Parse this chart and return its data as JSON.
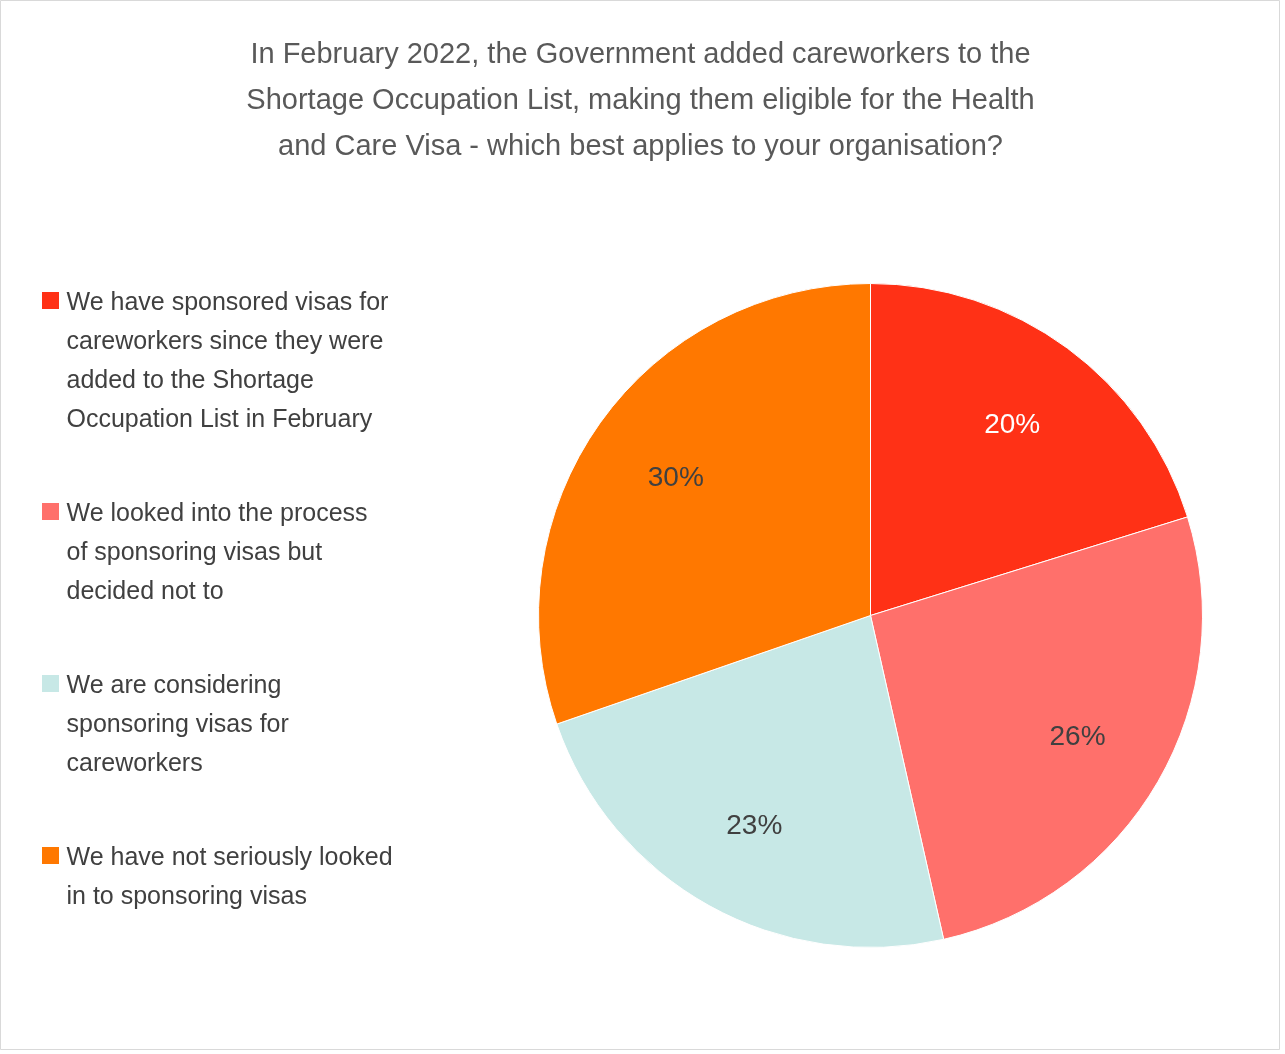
{
  "chart_data": {
    "type": "pie",
    "title": "In February 2022, the Government added careworkers to the Shortage Occupation List, making them eligible for the Health and Care Visa - which best applies to your organisation?",
    "categories": [
      "We have sponsored visas for careworkers since they were added to the Shortage Occupation List in February",
      "We looked into the process of sponsoring visas but decided not to",
      "We are considering sponsoring visas for careworkers",
      "We have not seriously looked in to sponsoring visas"
    ],
    "values": [
      20,
      26,
      23,
      30
    ],
    "colors": [
      "#ff3116",
      "#ff706b",
      "#c7e8e6",
      "#ff7800"
    ],
    "value_labels": [
      "20%",
      "26%",
      "23%",
      "30%"
    ],
    "legend": "left"
  }
}
